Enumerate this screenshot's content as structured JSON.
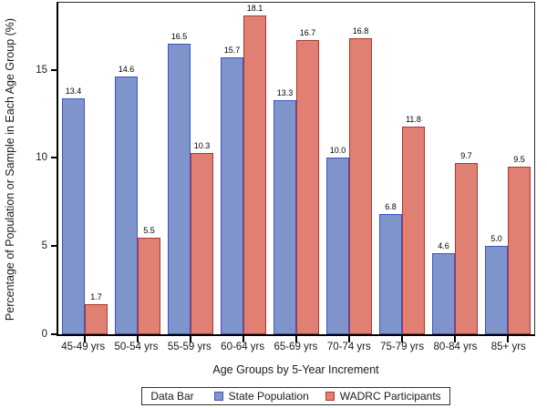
{
  "legend": {
    "title": "Data Bar",
    "entries": [
      {
        "label": "State Population",
        "fill": "#8094CC",
        "stroke": "#4152C7"
      },
      {
        "label": "WADRC Participants",
        "fill": "#E08073",
        "stroke": "#B0352E"
      }
    ]
  },
  "chart_data": {
    "type": "bar",
    "title": "",
    "xlabel": "Age Groups by 5-Year Increment",
    "ylabel": "Percentage of Population or Sample in Each Age Group (%)",
    "categories": [
      "45-49 yrs",
      "50-54 yrs",
      "55-59 yrs",
      "60-64 yrs",
      "65-69 yrs",
      "70-74 yrs",
      "75-79 yrs",
      "80-84 yrs",
      "85+ yrs"
    ],
    "series": [
      {
        "name": "State Population",
        "fill": "#8094CC",
        "stroke": "#4152C7",
        "values": [
          13.4,
          14.6,
          16.5,
          15.7,
          13.3,
          10.0,
          6.8,
          4.6,
          5.0
        ]
      },
      {
        "name": "WADRC Participants",
        "fill": "#E08073",
        "stroke": "#B0352E",
        "values": [
          1.7,
          5.5,
          10.3,
          18.1,
          16.7,
          16.8,
          11.8,
          9.7,
          9.5
        ]
      }
    ],
    "value_labels": true,
    "value_label_format": "0.1",
    "yticks": [
      0,
      5,
      10,
      15
    ],
    "ylim": [
      0,
      18.8
    ],
    "grid": false,
    "legend_position": "bottom"
  }
}
